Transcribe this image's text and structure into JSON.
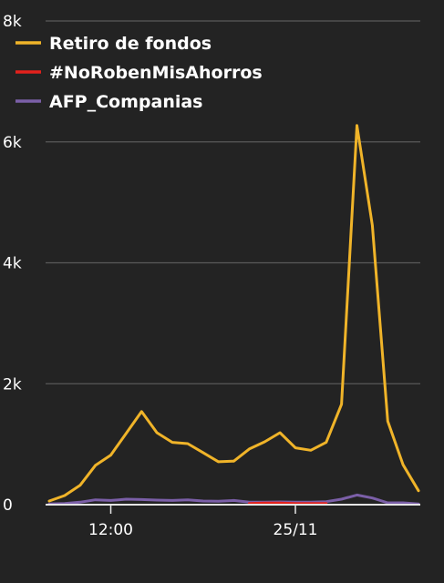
{
  "chart_data": {
    "type": "line",
    "title": "",
    "xlabel": "",
    "ylabel": "",
    "ylim": [
      0,
      8000
    ],
    "y_ticks": [
      {
        "value": 0,
        "label": "0"
      },
      {
        "value": 2000,
        "label": "2k"
      },
      {
        "value": 4000,
        "label": "4k"
      },
      {
        "value": 6000,
        "label": "6k"
      },
      {
        "value": 8000,
        "label": "8k"
      }
    ],
    "x_count": 25,
    "x_ticks": [
      {
        "index": 4,
        "label": "12:00"
      },
      {
        "index": 16,
        "label": "25/11"
      }
    ],
    "grid": true,
    "legend_position": "top-left",
    "series": [
      {
        "name": "Retiro de fondos",
        "color": "#f0b429",
        "values": [
          60,
          150,
          320,
          650,
          820,
          1180,
          1540,
          1190,
          1030,
          1010,
          860,
          710,
          720,
          920,
          1040,
          1190,
          940,
          900,
          1030,
          1660,
          6270,
          4620,
          1380,
          660,
          230
        ]
      },
      {
        "name": "#NoRobenMisAhorros",
        "color": "#e3211c",
        "values": [
          null,
          null,
          null,
          null,
          null,
          null,
          null,
          null,
          null,
          null,
          null,
          null,
          null,
          20,
          25,
          25,
          20,
          20,
          20,
          null,
          null,
          null,
          null,
          null,
          null
        ]
      },
      {
        "name": "AFP_Companias",
        "color": "#7b5fa8",
        "values": [
          10,
          20,
          40,
          80,
          70,
          90,
          85,
          75,
          70,
          80,
          60,
          55,
          70,
          40,
          40,
          45,
          40,
          40,
          50,
          90,
          160,
          110,
          30,
          30,
          10
        ]
      }
    ]
  }
}
